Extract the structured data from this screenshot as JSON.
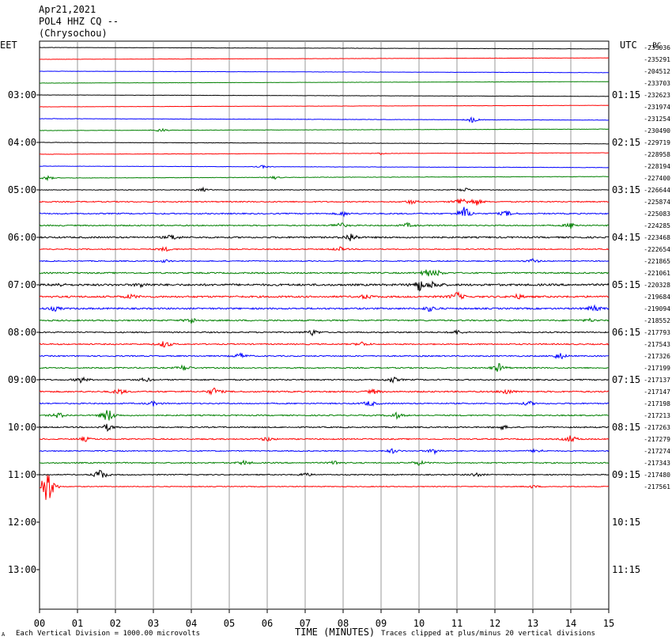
{
  "header": {
    "date": "Apr21,2021",
    "station": "POL4 HHZ CQ --",
    "location": "(Chrysochou)"
  },
  "left_tz": "EET",
  "right_tz": "UTC",
  "corner_label": "-BC",
  "footer": {
    "left_mark": "A",
    "vertical_division": "Each Vertical Division = 1000.00 microvolts",
    "xlabel": "TIME (MINUTES)",
    "clip_note": "Traces clipped at plus/minus 20 vertical divisions"
  },
  "chart_data": {
    "type": "line",
    "title": "",
    "xlabel": "TIME (MINUTES)",
    "xlim": [
      0,
      15
    ],
    "x_ticks": [
      "00",
      "01",
      "02",
      "03",
      "04",
      "05",
      "06",
      "07",
      "08",
      "09",
      "10",
      "11",
      "12",
      "13",
      "14",
      "15"
    ],
    "grid": true,
    "trace_colors": [
      "#000000",
      "#ff0000",
      "#0000ff",
      "#008000"
    ],
    "left_time_labels": [
      "03:00",
      "04:00",
      "05:00",
      "06:00",
      "07:00",
      "08:00",
      "09:00",
      "10:00",
      "11:00",
      "12:00",
      "13:00"
    ],
    "right_time_labels": [
      "01:15",
      "02:15",
      "03:15",
      "04:15",
      "05:15",
      "06:15",
      "07:15",
      "08:15",
      "09:15",
      "10:15",
      "11:15"
    ],
    "trace_offsets": [
      "-235036",
      "-235291",
      "-204512",
      "-233703",
      "-232623",
      "-231974",
      "-231254",
      "-230490",
      "-229719",
      "-228958",
      "-228194",
      "-227400",
      "-226644",
      "-225874",
      "-225083",
      "-224285",
      "-223468",
      "-222654",
      "-221865",
      "-221061",
      "-220328",
      "-219684",
      "-219094",
      "-218552",
      "-217793",
      "-217543",
      "-217326",
      "-217199",
      "-217137",
      "-217147",
      "-217198",
      "-217213",
      "-217263",
      "-217279",
      "-217274",
      "-217343",
      "-217480",
      "-217561"
    ],
    "trace_activity": [
      0.15,
      0.15,
      0.15,
      0.15,
      0.15,
      0.15,
      0.2,
      0.2,
      0.2,
      0.2,
      0.2,
      0.25,
      0.35,
      0.55,
      0.6,
      0.6,
      0.8,
      0.5,
      0.5,
      0.7,
      1.0,
      0.9,
      0.8,
      0.7,
      0.6,
      0.6,
      0.6,
      0.6,
      0.6,
      0.7,
      0.6,
      0.6,
      0.6,
      0.6,
      0.5,
      0.6,
      0.5,
      0.4
    ],
    "trace_events": [
      [],
      [],
      [],
      [],
      [],
      [],
      [
        [
          11.4,
          4
        ]
      ],
      [
        [
          3.2,
          3
        ]
      ],
      [],
      [
        [
          9.0,
          1.5
        ]
      ],
      [
        [
          5.9,
          2
        ]
      ],
      [
        [
          0.2,
          3
        ],
        [
          6.2,
          2
        ]
      ],
      [
        [
          4.3,
          2.5
        ],
        [
          11.2,
          3
        ]
      ],
      [
        [
          9.8,
          3
        ],
        [
          11.1,
          6
        ],
        [
          11.5,
          5
        ]
      ],
      [
        [
          8.0,
          3
        ],
        [
          11.2,
          10
        ],
        [
          12.3,
          4
        ]
      ],
      [
        [
          7.9,
          5
        ],
        [
          9.7,
          3
        ],
        [
          14.0,
          4
        ]
      ],
      [
        [
          3.5,
          4
        ],
        [
          8.2,
          6
        ]
      ],
      [
        [
          3.3,
          3
        ],
        [
          7.9,
          3
        ]
      ],
      [
        [
          3.3,
          2
        ],
        [
          13.0,
          3
        ]
      ],
      [
        [
          10.2,
          5
        ],
        [
          10.5,
          3
        ]
      ],
      [
        [
          0.5,
          2
        ],
        [
          2.7,
          3
        ],
        [
          10.0,
          8
        ],
        [
          10.4,
          5
        ]
      ],
      [
        [
          2.4,
          3
        ],
        [
          8.6,
          3
        ],
        [
          11.0,
          6
        ],
        [
          12.6,
          3
        ]
      ],
      [
        [
          0.4,
          3
        ],
        [
          10.3,
          4
        ],
        [
          14.6,
          5
        ]
      ],
      [
        [
          4.0,
          4
        ],
        [
          14.5,
          2
        ]
      ],
      [
        [
          7.2,
          4
        ],
        [
          11.0,
          3
        ]
      ],
      [
        [
          3.3,
          5
        ],
        [
          8.5,
          3
        ]
      ],
      [
        [
          5.3,
          4
        ],
        [
          13.7,
          5
        ]
      ],
      [
        [
          3.8,
          4
        ],
        [
          12.1,
          6
        ]
      ],
      [
        [
          1.1,
          4
        ],
        [
          2.8,
          3
        ],
        [
          9.3,
          4
        ]
      ],
      [
        [
          2.1,
          4
        ],
        [
          4.6,
          5
        ],
        [
          8.8,
          3
        ],
        [
          12.3,
          4
        ]
      ],
      [
        [
          3.0,
          3
        ],
        [
          8.7,
          4
        ],
        [
          12.9,
          3
        ]
      ],
      [
        [
          0.5,
          4
        ],
        [
          1.8,
          10
        ],
        [
          9.4,
          4
        ]
      ],
      [
        [
          1.8,
          5
        ],
        [
          12.2,
          3
        ]
      ],
      [
        [
          1.2,
          3
        ],
        [
          6.0,
          3
        ],
        [
          14.0,
          5
        ]
      ],
      [
        [
          9.3,
          3
        ],
        [
          10.4,
          4
        ],
        [
          13.1,
          3
        ]
      ],
      [
        [
          5.4,
          3
        ],
        [
          7.8,
          3
        ],
        [
          10.0,
          3
        ]
      ],
      [
        [
          1.6,
          8
        ],
        [
          7.0,
          3
        ],
        [
          11.5,
          3
        ]
      ],
      [
        [
          0.2,
          30
        ],
        [
          13.0,
          2
        ]
      ]
    ]
  }
}
